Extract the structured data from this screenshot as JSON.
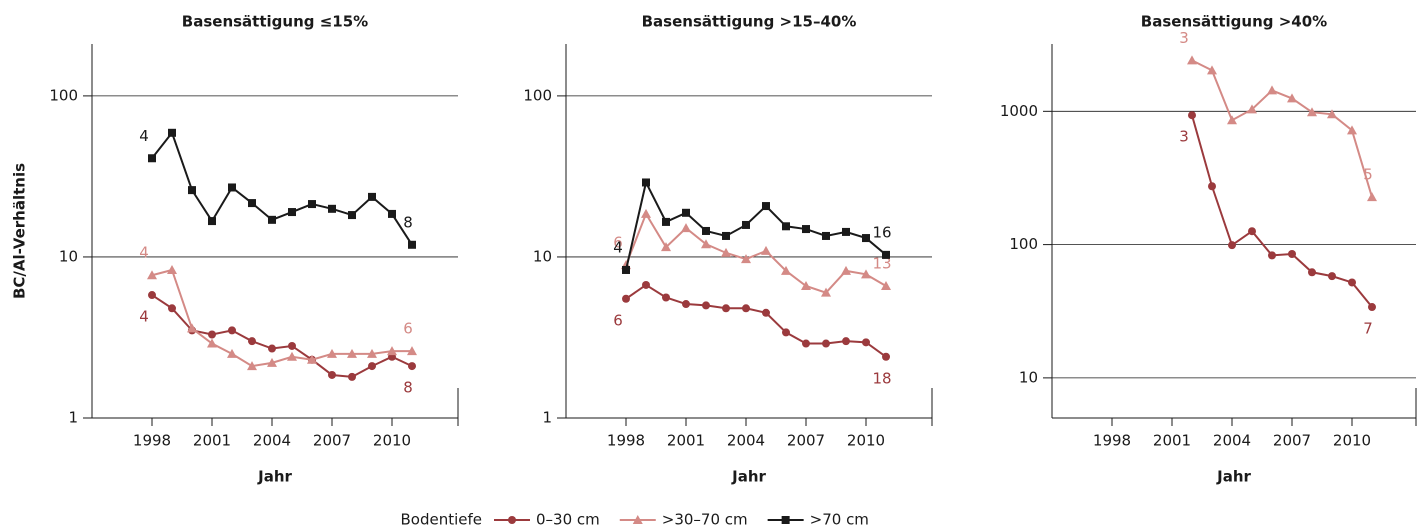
{
  "chart_data": [
    {
      "type": "line",
      "title": "Basensättigung ≤15%",
      "ylabel": "BC/Al-Verhältnis",
      "xlabel": "Jahr",
      "log_y": true,
      "grid": true,
      "x": [
        1998,
        1999,
        2000,
        2001,
        2002,
        2003,
        2004,
        2005,
        2006,
        2007,
        2008,
        2009,
        2010,
        2011
      ],
      "xlim": [
        1995,
        2013.3
      ],
      "xticks": [
        1998,
        2001,
        2004,
        2007,
        2010
      ],
      "ylim": [
        1,
        210
      ],
      "yticks": [
        1,
        10,
        100
      ],
      "series": [
        {
          "name": "0–30 cm",
          "color": "#9b3a3d",
          "marker": "circle",
          "start_label": "4",
          "end_label": "8",
          "values": [
            5.8,
            4.8,
            3.5,
            3.3,
            3.5,
            3.0,
            2.7,
            2.8,
            2.3,
            1.85,
            1.8,
            2.1,
            2.4,
            2.1
          ]
        },
        {
          "name": ">30–70 cm",
          "color": "#d48a86",
          "marker": "triangle",
          "start_label": "4",
          "end_label": "6",
          "values": [
            7.7,
            8.3,
            3.6,
            2.9,
            2.5,
            2.1,
            2.2,
            2.4,
            2.3,
            2.5,
            2.5,
            2.5,
            2.6,
            2.6
          ]
        },
        {
          "name": ">70 cm",
          "color": "#1a1a1a",
          "marker": "square",
          "start_label": "4",
          "end_label": "8",
          "values": [
            41,
            59,
            26,
            16.7,
            27,
            21.6,
            17,
            19,
            21.3,
            19.9,
            18.2,
            23.6,
            18.5,
            11.9
          ]
        }
      ]
    },
    {
      "type": "line",
      "title": "Basensättigung >15–40%",
      "xlabel": "Jahr",
      "log_y": true,
      "grid": true,
      "x": [
        1998,
        1999,
        2000,
        2001,
        2002,
        2003,
        2004,
        2005,
        2006,
        2007,
        2008,
        2009,
        2010,
        2011
      ],
      "xlim": [
        1995,
        2013.3
      ],
      "xticks": [
        1998,
        2001,
        2004,
        2007,
        2010
      ],
      "ylim": [
        1,
        210
      ],
      "yticks": [
        1,
        10,
        100
      ],
      "series": [
        {
          "name": "0–30 cm",
          "color": "#9b3a3d",
          "marker": "circle",
          "start_label": "6",
          "end_label": "18",
          "values": [
            5.5,
            6.7,
            5.6,
            5.1,
            5.0,
            4.8,
            4.8,
            4.5,
            3.4,
            2.9,
            2.9,
            3.0,
            2.95,
            2.4
          ]
        },
        {
          "name": ">30–70 cm",
          "color": "#d48a86",
          "marker": "triangle",
          "start_label": "6",
          "end_label": "13",
          "values": [
            8.9,
            18.5,
            11.5,
            15.1,
            12,
            10.6,
            9.7,
            10.9,
            8.2,
            6.6,
            6.0,
            8.2,
            7.8,
            6.6
          ]
        },
        {
          "name": ">70 cm",
          "color": "#1a1a1a",
          "marker": "square",
          "start_label": "4",
          "end_label": "16",
          "values": [
            8.3,
            29,
            16.5,
            18.8,
            14.5,
            13.5,
            15.8,
            20.7,
            15.5,
            14.9,
            13.5,
            14.3,
            13.1,
            10.3
          ]
        }
      ]
    },
    {
      "type": "line",
      "title": "Basensättigung >40%",
      "xlabel": "Jahr",
      "log_y": true,
      "grid": true,
      "x": [
        1998,
        1999,
        2000,
        2001,
        2002,
        2003,
        2004,
        2005,
        2006,
        2007,
        2008,
        2009,
        2010,
        2011
      ],
      "xlim": [
        1995,
        2013.2
      ],
      "xticks": [
        1998,
        2001,
        2004,
        2007,
        2010
      ],
      "ylim": [
        5,
        3200
      ],
      "yticks": [
        10,
        100,
        1000
      ],
      "series": [
        {
          "name": "0–30 cm",
          "color": "#9b3a3d",
          "marker": "circle",
          "start_label": "3",
          "end_label": "7",
          "values": [
            null,
            null,
            null,
            null,
            935,
            274,
            99,
            126,
            83,
            85,
            62,
            58,
            52,
            34
          ]
        },
        {
          "name": ">30–70 cm",
          "color": "#d48a86",
          "marker": "triangle",
          "start_label": "3",
          "end_label": "5",
          "values": [
            null,
            null,
            null,
            null,
            2410,
            2030,
            857,
            1035,
            1435,
            1250,
            985,
            950,
            720,
            227
          ]
        }
      ]
    }
  ],
  "legend": {
    "title": "Bodentiefe"
  }
}
